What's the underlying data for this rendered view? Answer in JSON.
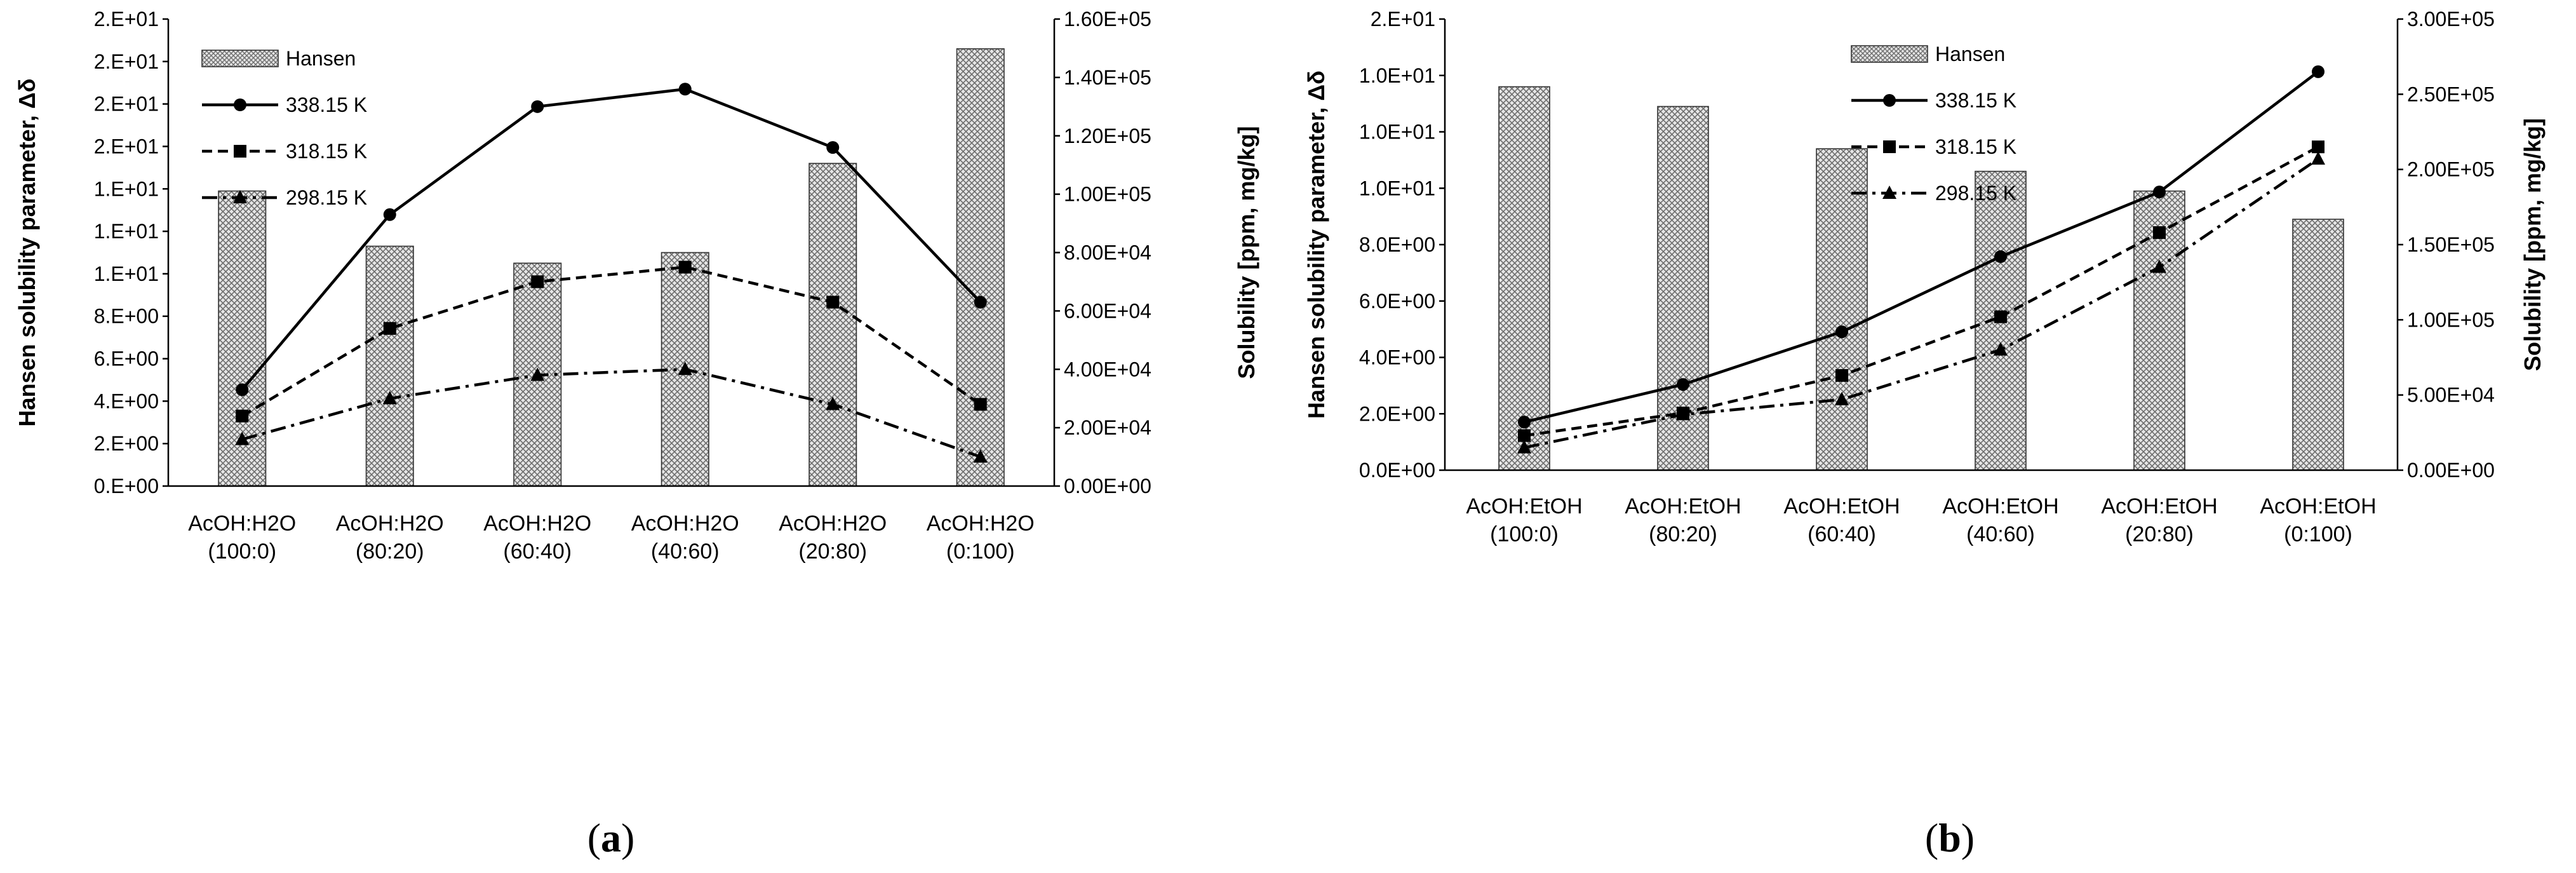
{
  "chart_data": [
    {
      "id": "a",
      "panel_label": [
        "(",
        "a",
        ")"
      ],
      "type": "bar+line",
      "categories": [
        [
          "AcOH:H2O",
          "(100:0)"
        ],
        [
          "AcOH:H2O",
          "(80:20)"
        ],
        [
          "AcOH:H2O",
          "(60:40)"
        ],
        [
          "AcOH:H2O",
          "(40:60)"
        ],
        [
          "AcOH:H2O",
          "(20:80)"
        ],
        [
          "AcOH:H2O",
          "(0:100)"
        ]
      ],
      "ylabel_left": "Hansen solubility parameter, Δδ",
      "ylabel_right": "Solubility [ppm, mg/kg]",
      "ylim_left": [
        0,
        22
      ],
      "ylim_right": [
        0,
        160000
      ],
      "left_ticks": [
        "0.E+00",
        "2.E+00",
        "4.E+00",
        "6.E+00",
        "8.E+00",
        "1.E+01",
        "1.E+01",
        "1.E+01",
        "2.E+01",
        "2.E+01",
        "2.E+01",
        "2.E+01"
      ],
      "right_ticks": [
        "0.00E+00",
        "2.00E+04",
        "4.00E+04",
        "6.00E+04",
        "8.00E+04",
        "1.00E+05",
        "1.20E+05",
        "1.40E+05",
        "1.60E+05"
      ],
      "bars": {
        "name": "Hansen",
        "values": [
          13.9,
          11.3,
          10.5,
          11.0,
          15.2,
          20.6
        ]
      },
      "series": [
        {
          "name": "338.15 K",
          "marker": "circle",
          "dash": "solid",
          "values": [
            33000,
            93000,
            130000,
            136000,
            116000,
            63000
          ]
        },
        {
          "name": "318.15 K",
          "marker": "square",
          "dash": "dashed",
          "values": [
            24000,
            54000,
            70000,
            75000,
            63000,
            28000
          ]
        },
        {
          "name": "298.15 K",
          "marker": "triangle",
          "dash": "dashdot",
          "values": [
            16000,
            30000,
            38000,
            40000,
            28000,
            10000
          ]
        }
      ],
      "legend_position": "top-left"
    },
    {
      "id": "b",
      "panel_label": [
        "(",
        "b",
        ")"
      ],
      "type": "bar+line",
      "categories": [
        [
          "AcOH:EtOH",
          "(100:0)"
        ],
        [
          "AcOH:EtOH",
          "(80:20)"
        ],
        [
          "AcOH:EtOH",
          "(60:40)"
        ],
        [
          "AcOH:EtOH",
          "(40:60)"
        ],
        [
          "AcOH:EtOH",
          "(20:80)"
        ],
        [
          "AcOH:EtOH",
          "(0:100)"
        ]
      ],
      "ylabel_left": "Hansen solubility parameter, Δδ",
      "ylabel_right": "Solubility [ppm, mg/kg]",
      "ylim_left": [
        0,
        16
      ],
      "ylim_right": [
        0,
        300000
      ],
      "left_ticks": [
        "0.0E+00",
        "2.0E+00",
        "4.0E+00",
        "6.0E+00",
        "8.0E+00",
        "1.0E+01",
        "1.0E+01",
        "1.0E+01",
        "2.E+01"
      ],
      "right_ticks": [
        "0.00E+00",
        "5.00E+04",
        "1.00E+05",
        "1.50E+05",
        "2.00E+05",
        "2.50E+05",
        "3.00E+05"
      ],
      "bars": {
        "name": "Hansen",
        "values": [
          13.6,
          12.9,
          11.4,
          10.6,
          9.9,
          8.9
        ]
      },
      "series": [
        {
          "name": "338.15 K",
          "marker": "circle",
          "dash": "solid",
          "values": [
            32000,
            57000,
            92000,
            142000,
            185000,
            265000
          ]
        },
        {
          "name": "318.15 K",
          "marker": "square",
          "dash": "dashed",
          "values": [
            23000,
            38000,
            63000,
            102000,
            158000,
            215000
          ]
        },
        {
          "name": "298.15 K",
          "marker": "triangle",
          "dash": "dashdot",
          "values": [
            15000,
            37000,
            47000,
            80000,
            135000,
            207000
          ]
        }
      ],
      "legend_position": "top-center"
    }
  ]
}
